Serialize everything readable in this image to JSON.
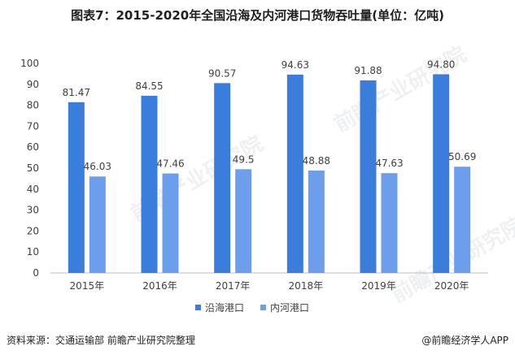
{
  "title": "图表7：2015-2020年全国沿海及内河港口货物吞吐量(单位：亿吨)",
  "source": "资料来源：交通运输部 前瞻产业研究院整理",
  "brand": "@前瞻经济学人APP",
  "watermark": "前瞻产业研究院",
  "colors": {
    "coastal": "#3b7ddd",
    "inland": "#6d9eeb",
    "axis": "#bfbfbf",
    "text": "#404040"
  },
  "chart_data": {
    "type": "bar",
    "categories": [
      "2015年",
      "2016年",
      "2017年",
      "2018年",
      "2019年",
      "2020年"
    ],
    "series": [
      {
        "name": "沿海港口",
        "values": [
          81.47,
          84.55,
          90.57,
          94.63,
          91.88,
          94.8
        ],
        "labels": [
          "81.47",
          "84.55",
          "90.57",
          "94.63",
          "91.88",
          "94.80"
        ]
      },
      {
        "name": "内河港口",
        "values": [
          46.03,
          47.46,
          49.5,
          48.88,
          47.63,
          50.69
        ],
        "labels": [
          "46.03",
          "47.46",
          "49.5",
          "48.88",
          "47.63",
          "50.69"
        ]
      }
    ],
    "ylim": [
      0,
      100
    ],
    "yticks": [
      0,
      10,
      20,
      30,
      40,
      50,
      60,
      70,
      80,
      90,
      100
    ],
    "grid": false,
    "legend": "bottom"
  }
}
